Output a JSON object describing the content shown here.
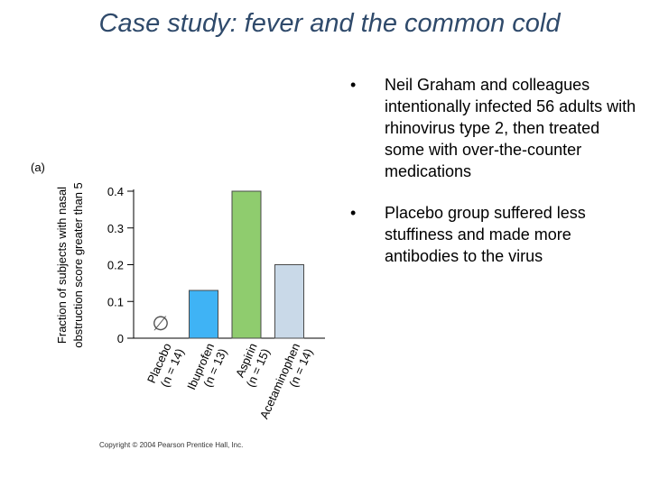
{
  "slide": {
    "title": "Case study: fever and the common cold",
    "bullets": [
      "Neil Graham and colleagues intentionally infected 56 adults with rhinovirus type 2, then treated some with over-the-counter medications",
      "Placebo group suffered less stuffiness and made more antibodies to the virus"
    ],
    "bullet_symbol": "•",
    "copyright": "Copyright © 2004 Pearson Prentice Hall, Inc."
  },
  "chart_data": {
    "type": "bar",
    "panel_label": "(a)",
    "ylabel_lines": [
      "Fraction of subjects with nasal",
      "obstruction score greater than 5"
    ],
    "ylim": [
      0,
      0.4
    ],
    "yticks": [
      0,
      0.1,
      0.2,
      0.3,
      0.4
    ],
    "ytick_labels": [
      "0",
      "0.1",
      "0.2",
      "0.3",
      "0.4"
    ],
    "categories": [
      "Placebo",
      "Ibuprofen",
      "Aspirin",
      "Acetaminophen"
    ],
    "category_n": [
      "(n = 14)",
      "(n = 13)",
      "(n = 15)",
      "(n = 14)"
    ],
    "values": [
      0,
      0.13,
      0.4,
      0.2
    ],
    "colors": [
      "#ffffff",
      "#3fb3f5",
      "#8fcc6e",
      "#c9d9e8"
    ],
    "empty_marker": "∅",
    "grid": false
  }
}
